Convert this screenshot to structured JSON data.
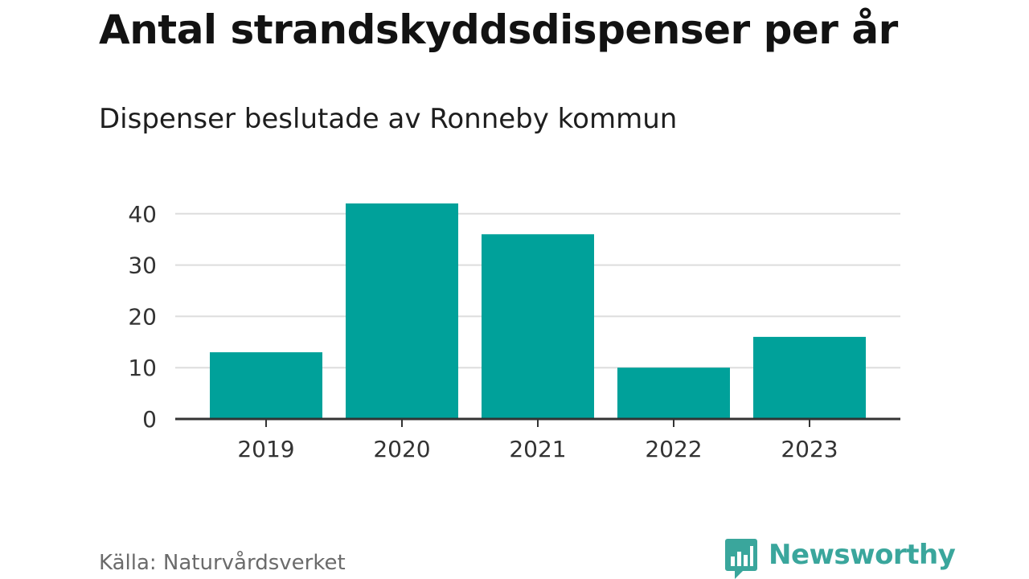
{
  "chart_data": {
    "type": "bar",
    "title": "Antal strandskyddsdispenser per år",
    "subtitle": "Dispenser beslutade av Ronneby kommun",
    "categories": [
      "2019",
      "2020",
      "2021",
      "2022",
      "2023"
    ],
    "values": [
      13,
      42,
      36,
      10,
      16
    ],
    "xlabel": "",
    "ylabel": "",
    "ylim": [
      0,
      42
    ],
    "yticks": [
      0,
      10,
      20,
      30,
      40
    ],
    "grid": true,
    "bar_color": "#00a19a",
    "source": "Källa: Naturvårdsverket"
  },
  "branding": {
    "logo_text": "Newsworthy",
    "logo_icon": "bar-chart-speech-bubble-icon",
    "logo_color": "#3aa69c"
  },
  "colors": {
    "grid": "#dddddd",
    "axis": "#333333",
    "text": "#121212"
  }
}
